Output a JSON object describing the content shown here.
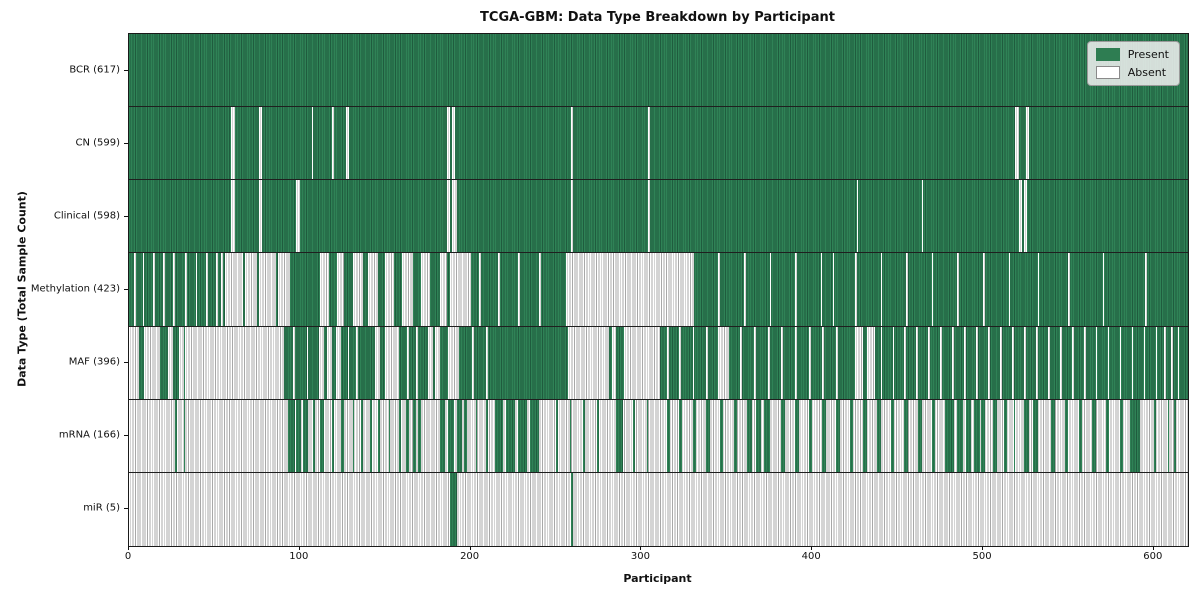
{
  "chart_data": {
    "type": "heatmap",
    "title": "TCGA-GBM: Data Type Breakdown by Participant",
    "xlabel": "Participant",
    "ylabel": "Data Type (Total Sample Count)",
    "x_ticks": [
      0,
      100,
      200,
      300,
      400,
      500,
      600
    ],
    "x_range": [
      0,
      620
    ],
    "n_participants": 617,
    "grid": false,
    "legend_position": "upper right",
    "legend": [
      {
        "label": "Present",
        "color": "#2e7d52"
      },
      {
        "label": "Absent",
        "color": "#ffffff"
      }
    ],
    "cell_colors": {
      "present_fill": "#2f8256",
      "present_edge": "#1f5c3e",
      "absent_fill": "#ffffff",
      "absent_edge": "#a8a8a8"
    },
    "rows": [
      {
        "data_type": "BCR",
        "label": "BCR (617)",
        "present_count": 617,
        "base": "present",
        "override_state": "absent",
        "overrides": []
      },
      {
        "data_type": "CN",
        "label": "CN (599)",
        "present_count": 599,
        "base": "present",
        "override_state": "absent",
        "overrides": [
          [
            60,
            62
          ],
          [
            76,
            78
          ],
          [
            107,
            108
          ],
          [
            119,
            120
          ],
          [
            127,
            129
          ],
          [
            186,
            188
          ],
          [
            189,
            191
          ],
          [
            259,
            260
          ],
          [
            304,
            305
          ],
          [
            519,
            521
          ],
          [
            525,
            527
          ]
        ]
      },
      {
        "data_type": "Clinical",
        "label": "Clinical (598)",
        "present_count": 598,
        "base": "present",
        "override_state": "absent",
        "overrides": [
          [
            60,
            62
          ],
          [
            76,
            78
          ],
          [
            98,
            100
          ],
          [
            186,
            188
          ],
          [
            189,
            192
          ],
          [
            259,
            260
          ],
          [
            304,
            305
          ],
          [
            426,
            427
          ],
          [
            464,
            465
          ],
          [
            521,
            523
          ],
          [
            524,
            526
          ]
        ]
      },
      {
        "data_type": "Methylation",
        "label": "Methylation (423)",
        "present_count": 423,
        "base": "present",
        "override_state": "absent",
        "overrides": [
          [
            3,
            4
          ],
          [
            8,
            9
          ],
          [
            14,
            15
          ],
          [
            20,
            21
          ],
          [
            26,
            27
          ],
          [
            33,
            34
          ],
          [
            39,
            40
          ],
          [
            45,
            46
          ],
          [
            51,
            52
          ],
          [
            54,
            55
          ],
          [
            56,
            67
          ],
          [
            68,
            75
          ],
          [
            76,
            86
          ],
          [
            87,
            94
          ],
          [
            112,
            117
          ],
          [
            122,
            126
          ],
          [
            131,
            137
          ],
          [
            140,
            146
          ],
          [
            150,
            155
          ],
          [
            160,
            166
          ],
          [
            171,
            176
          ],
          [
            182,
            186
          ],
          [
            188,
            200
          ],
          [
            205,
            206
          ],
          [
            216,
            217
          ],
          [
            228,
            229
          ],
          [
            240,
            241
          ],
          [
            256,
            331
          ],
          [
            345,
            346
          ],
          [
            360,
            361
          ],
          [
            375,
            376
          ],
          [
            390,
            391
          ],
          [
            405,
            406
          ],
          [
            412,
            413
          ],
          [
            425,
            426
          ],
          [
            440,
            441
          ],
          [
            455,
            456
          ],
          [
            470,
            471
          ],
          [
            485,
            486
          ],
          [
            500,
            501
          ],
          [
            515,
            516
          ],
          [
            532,
            533
          ],
          [
            550,
            551
          ],
          [
            570,
            571
          ],
          [
            595,
            596
          ]
        ]
      },
      {
        "data_type": "MAF",
        "label": "MAF (396)",
        "present_count": 396,
        "base": "present",
        "override_state": "absent",
        "overrides": [
          [
            0,
            6
          ],
          [
            9,
            18
          ],
          [
            23,
            26
          ],
          [
            29,
            32
          ],
          [
            33,
            91
          ],
          [
            96,
            97
          ],
          [
            104,
            105
          ],
          [
            111,
            114
          ],
          [
            116,
            119
          ],
          [
            121,
            124
          ],
          [
            128,
            129
          ],
          [
            133,
            134
          ],
          [
            144,
            147
          ],
          [
            150,
            158
          ],
          [
            163,
            164
          ],
          [
            168,
            169
          ],
          [
            175,
            178
          ],
          [
            179,
            182
          ],
          [
            187,
            193
          ],
          [
            201,
            202
          ],
          [
            209,
            210
          ],
          [
            257,
            281
          ],
          [
            283,
            285
          ],
          [
            290,
            311
          ],
          [
            315,
            316
          ],
          [
            322,
            323
          ],
          [
            330,
            331
          ],
          [
            338,
            339
          ],
          [
            345,
            351
          ],
          [
            358,
            359
          ],
          [
            366,
            367
          ],
          [
            374,
            375
          ],
          [
            382,
            383
          ],
          [
            390,
            391
          ],
          [
            398,
            399
          ],
          [
            406,
            407
          ],
          [
            414,
            415
          ],
          [
            425,
            430
          ],
          [
            432,
            437
          ],
          [
            440,
            441
          ],
          [
            447,
            448
          ],
          [
            454,
            455
          ],
          [
            461,
            462
          ],
          [
            468,
            469
          ],
          [
            475,
            476
          ],
          [
            482,
            483
          ],
          [
            489,
            490
          ],
          [
            496,
            497
          ],
          [
            503,
            504
          ],
          [
            510,
            511
          ],
          [
            517,
            518
          ],
          [
            524,
            525
          ],
          [
            531,
            532
          ],
          [
            538,
            539
          ],
          [
            545,
            546
          ],
          [
            552,
            553
          ],
          [
            559,
            560
          ],
          [
            566,
            567
          ],
          [
            573,
            574
          ],
          [
            580,
            581
          ],
          [
            587,
            588
          ],
          [
            594,
            595
          ],
          [
            601,
            602
          ],
          [
            606,
            607
          ],
          [
            610,
            611
          ],
          [
            614,
            615
          ]
        ]
      },
      {
        "data_type": "mRNA",
        "label": "mRNA (166)",
        "present_count": 166,
        "base": "absent",
        "override_state": "present",
        "overrides": [
          [
            27,
            28
          ],
          [
            32,
            33
          ],
          [
            93,
            97
          ],
          [
            98,
            101
          ],
          [
            102,
            105
          ],
          [
            108,
            109
          ],
          [
            112,
            114
          ],
          [
            119,
            120
          ],
          [
            124,
            126
          ],
          [
            131,
            132
          ],
          [
            136,
            137
          ],
          [
            141,
            142
          ],
          [
            146,
            147
          ],
          [
            152,
            153
          ],
          [
            158,
            159
          ],
          [
            162,
            164
          ],
          [
            166,
            168
          ],
          [
            169,
            171
          ],
          [
            182,
            185
          ],
          [
            187,
            190
          ],
          [
            192,
            195
          ],
          [
            196,
            198
          ],
          [
            203,
            204
          ],
          [
            209,
            210
          ],
          [
            214,
            219
          ],
          [
            221,
            226
          ],
          [
            228,
            233
          ],
          [
            235,
            240
          ],
          [
            250,
            251
          ],
          [
            258,
            259
          ],
          [
            266,
            267
          ],
          [
            274,
            275
          ],
          [
            285,
            289
          ],
          [
            295,
            296
          ],
          [
            303,
            304
          ],
          [
            315,
            317
          ],
          [
            322,
            324
          ],
          [
            330,
            332
          ],
          [
            338,
            340
          ],
          [
            346,
            348
          ],
          [
            354,
            356
          ],
          [
            362,
            365
          ],
          [
            367,
            370
          ],
          [
            372,
            375
          ],
          [
            382,
            384
          ],
          [
            390,
            392
          ],
          [
            398,
            400
          ],
          [
            406,
            408
          ],
          [
            414,
            416
          ],
          [
            422,
            424
          ],
          [
            430,
            432
          ],
          [
            438,
            440
          ],
          [
            446,
            448
          ],
          [
            454,
            456
          ],
          [
            462,
            464
          ],
          [
            470,
            472
          ],
          [
            478,
            483
          ],
          [
            485,
            488
          ],
          [
            490,
            493
          ],
          [
            495,
            498
          ],
          [
            499,
            501
          ],
          [
            506,
            508
          ],
          [
            512,
            514
          ],
          [
            518,
            519
          ],
          [
            524,
            527
          ],
          [
            529,
            532
          ],
          [
            540,
            542
          ],
          [
            548,
            550
          ],
          [
            556,
            558
          ],
          [
            564,
            566
          ],
          [
            572,
            574
          ],
          [
            580,
            582
          ],
          [
            586,
            592
          ],
          [
            600,
            601
          ],
          [
            608,
            609
          ],
          [
            612,
            613
          ]
        ]
      },
      {
        "data_type": "miR",
        "label": "miR (5)",
        "present_count": 5,
        "base": "absent",
        "override_state": "present",
        "overrides": [
          [
            188,
            192
          ],
          [
            259,
            260
          ]
        ]
      }
    ]
  }
}
